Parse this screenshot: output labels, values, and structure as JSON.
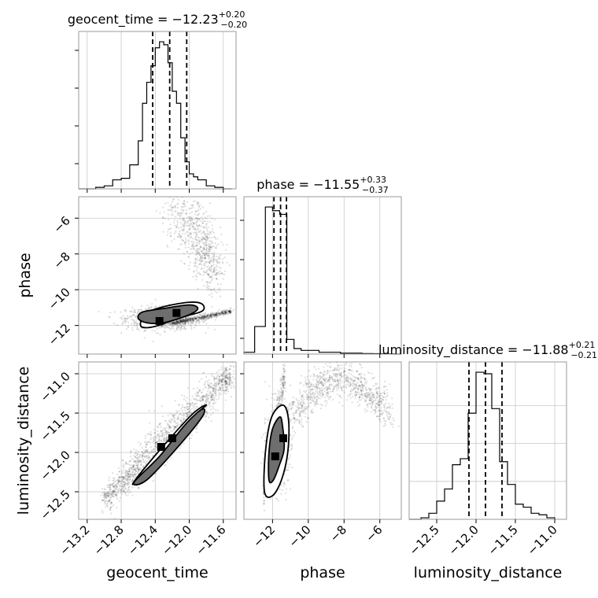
{
  "chart_data": [
    {
      "type": "histogram",
      "panel": "geocent_time-1d",
      "title": "geocent_time = −12.23",
      "title_sup": "+0.20",
      "title_sub": "−0.20",
      "param": "geocent_time",
      "xlim": [
        -13.3,
        -11.45
      ],
      "bins": [
        -13.3,
        -13.2,
        -13.1,
        -13.0,
        -12.9,
        -12.8,
        -12.7,
        -12.6,
        -12.55,
        -12.5,
        -12.45,
        -12.4,
        -12.35,
        -12.3,
        -12.25,
        -12.2,
        -12.15,
        -12.1,
        -12.05,
        -12.0,
        -11.95,
        -11.9,
        -11.8,
        -11.7,
        -11.6,
        -11.5
      ],
      "counts": [
        0,
        0,
        1,
        2,
        6,
        7,
        16,
        32,
        57,
        71,
        82,
        94,
        98,
        96,
        84,
        65,
        57,
        34,
        18,
        10,
        8,
        6,
        2,
        1,
        0
      ],
      "quantiles": [
        -12.43,
        -12.23,
        -12.03
      ],
      "ticks": []
    },
    {
      "type": "scatter",
      "panel": "geocent_time-vs-phase",
      "xlabel": "",
      "ylabel": "phase",
      "xlim": [
        -13.3,
        -11.45
      ],
      "ylim": [
        -13.6,
        -4.8
      ],
      "yticks": [
        -12,
        -10,
        -8,
        -6
      ],
      "yticklabels": [
        "−12",
        "−10",
        "−8",
        "−6"
      ],
      "sample_clusters": [
        {
          "kind": "blob",
          "center": [
            -12.3,
            -11.6
          ],
          "spread": [
            0.22,
            0.32
          ],
          "n": 900
        },
        {
          "kind": "ridge",
          "from": [
            -12.2,
            -11.9
          ],
          "to": [
            -11.5,
            -11.2
          ],
          "n": 500
        },
        {
          "kind": "arc",
          "from": [
            -12.3,
            -5.6
          ],
          "to": [
            -11.7,
            -9.0
          ],
          "n": 700
        }
      ],
      "contours": [
        {
          "level": 1,
          "points": [
            [
              -12.6,
              -11.6
            ],
            [
              -12.55,
              -11.25
            ],
            [
              -12.3,
              -11.05
            ],
            [
              -12.0,
              -10.85
            ],
            [
              -11.9,
              -11.05
            ],
            [
              -12.0,
              -11.4
            ],
            [
              -12.3,
              -11.85
            ],
            [
              -12.5,
              -11.85
            ]
          ]
        },
        {
          "level": 2,
          "points": [
            [
              -12.57,
              -11.8
            ],
            [
              -12.5,
              -11.3
            ],
            [
              -12.3,
              -10.95
            ],
            [
              -12.0,
              -10.7
            ],
            [
              -11.85,
              -10.8
            ],
            [
              -11.85,
              -11.2
            ],
            [
              -12.1,
              -11.55
            ],
            [
              -12.4,
              -12.05
            ],
            [
              -12.55,
              -12.1
            ]
          ]
        }
      ],
      "peaks": [
        [
          -12.35,
          -11.75
        ],
        [
          -12.15,
          -11.3
        ]
      ]
    },
    {
      "type": "histogram",
      "panel": "phase-1d",
      "title": "phase = −11.55",
      "title_sup": "+0.33",
      "title_sub": "−0.37",
      "param": "phase",
      "xlim": [
        -13.6,
        -4.8
      ],
      "bins": [
        -13.6,
        -13.0,
        -12.4,
        -12.0,
        -11.6,
        -11.2,
        -10.8,
        -10.4,
        -10.0,
        -9.4,
        -8.8,
        -8.2,
        -7.6,
        -7.0,
        -6.4,
        -5.8,
        -5.2,
        -4.8
      ],
      "counts": [
        1,
        15,
        80,
        78,
        76,
        8,
        3,
        2,
        2,
        1,
        1,
        0.5,
        0.5,
        0.3,
        0.2,
        0.1,
        0
      ],
      "quantiles": [
        -11.92,
        -11.55,
        -11.22
      ]
    },
    {
      "type": "scatter",
      "panel": "geocent_time-vs-luminosity_distance",
      "xlabel": "geocent_time",
      "ylabel": "luminosity_distance",
      "xlim": [
        -13.3,
        -11.45
      ],
      "ylim": [
        -12.85,
        -10.85
      ],
      "xticks": [
        -13.2,
        -12.8,
        -12.4,
        -12.0,
        -11.6
      ],
      "xticklabels": [
        "−13.2",
        "−12.8",
        "−12.4",
        "−12.0",
        "−11.6"
      ],
      "yticks": [
        -12.5,
        -12.0,
        -11.5,
        -11.0
      ],
      "yticklabels": [
        "−12.5",
        "−12.0",
        "−11.5",
        "−11.0"
      ],
      "sample_clusters": [
        {
          "kind": "ridge",
          "from": [
            -13.0,
            -12.6
          ],
          "to": [
            -11.5,
            -11.0
          ],
          "n": 1500
        }
      ],
      "contours": [
        {
          "level": 1,
          "points": [
            [
              -12.65,
              -12.38
            ],
            [
              -12.35,
              -12.05
            ],
            [
              -12.05,
              -11.65
            ],
            [
              -11.85,
              -11.45
            ],
            [
              -11.85,
              -11.55
            ],
            [
              -12.15,
              -11.95
            ],
            [
              -12.5,
              -12.35
            ]
          ]
        },
        {
          "level": 2,
          "points": [
            [
              -12.65,
              -12.4
            ],
            [
              -12.4,
              -12.15
            ],
            [
              -12.0,
              -11.6
            ],
            [
              -11.8,
              -11.4
            ],
            [
              -11.95,
              -11.5
            ],
            [
              -12.25,
              -11.85
            ],
            [
              -12.6,
              -12.3
            ]
          ]
        }
      ],
      "peaks": [
        [
          -12.33,
          -11.93
        ],
        [
          -12.2,
          -11.82
        ]
      ]
    },
    {
      "type": "scatter",
      "panel": "phase-vs-luminosity_distance",
      "xlabel": "phase",
      "ylabel": "",
      "xlim": [
        -13.6,
        -4.8
      ],
      "ylim": [
        -12.85,
        -10.85
      ],
      "xticks": [
        -12,
        -10,
        -8,
        -6
      ],
      "xticklabels": [
        "−12",
        "−10",
        "−8",
        "−6"
      ],
      "sample_clusters": [
        {
          "kind": "blob",
          "center": [
            -11.7,
            -11.9
          ],
          "spread": [
            0.3,
            0.25
          ],
          "n": 900
        },
        {
          "kind": "ridge",
          "from": [
            -12.5,
            -12.6
          ],
          "to": [
            -11.3,
            -11.0
          ],
          "n": 400
        },
        {
          "kind": "arc",
          "from": [
            -11.0,
            -11.55
          ],
          "to": [
            -5.5,
            -11.5
          ],
          "n": 900
        }
      ],
      "contours": [
        {
          "level": 1,
          "points": [
            [
              -12.2,
              -12.35
            ],
            [
              -12.2,
              -12.0
            ],
            [
              -12.0,
              -11.7
            ],
            [
              -11.6,
              -11.55
            ],
            [
              -11.45,
              -11.65
            ],
            [
              -11.35,
              -11.95
            ],
            [
              -11.6,
              -12.15
            ],
            [
              -11.95,
              -12.35
            ]
          ]
        },
        {
          "level": 2,
          "points": [
            [
              -12.45,
              -12.5
            ],
            [
              -12.4,
              -12.0
            ],
            [
              -12.05,
              -11.55
            ],
            [
              -11.4,
              -11.4
            ],
            [
              -11.1,
              -11.6
            ],
            [
              -11.15,
              -12.0
            ],
            [
              -11.5,
              -12.35
            ],
            [
              -12.0,
              -12.55
            ]
          ]
        }
      ],
      "peaks": [
        [
          -11.85,
          -12.05
        ],
        [
          -11.4,
          -11.82
        ]
      ]
    },
    {
      "type": "histogram",
      "panel": "luminosity_distance-1d",
      "title": "luminosity_distance = −11.88",
      "title_sup": "+0.21",
      "title_sub": "−0.21",
      "param": "luminosity_distance",
      "xlabel": "luminosity_distance",
      "xlim": [
        -12.85,
        -10.85
      ],
      "xticks": [
        -12.5,
        -12.0,
        -11.5,
        -11.0
      ],
      "xticklabels": [
        "−12.5",
        "−12.0",
        "−11.5",
        "−11.0"
      ],
      "bins": [
        -12.85,
        -12.7,
        -12.6,
        -12.5,
        -12.4,
        -12.3,
        -12.2,
        -12.1,
        -12.0,
        -11.9,
        -11.8,
        -11.7,
        -11.6,
        -11.5,
        -11.4,
        -11.3,
        -11.2,
        -11.1,
        -11.0
      ],
      "counts": [
        0,
        1,
        4,
        12,
        20,
        36,
        40,
        70,
        97,
        96,
        73,
        38,
        23,
        10,
        8,
        4,
        3,
        1
      ],
      "quantiles": [
        -12.09,
        -11.88,
        -11.67
      ]
    }
  ]
}
